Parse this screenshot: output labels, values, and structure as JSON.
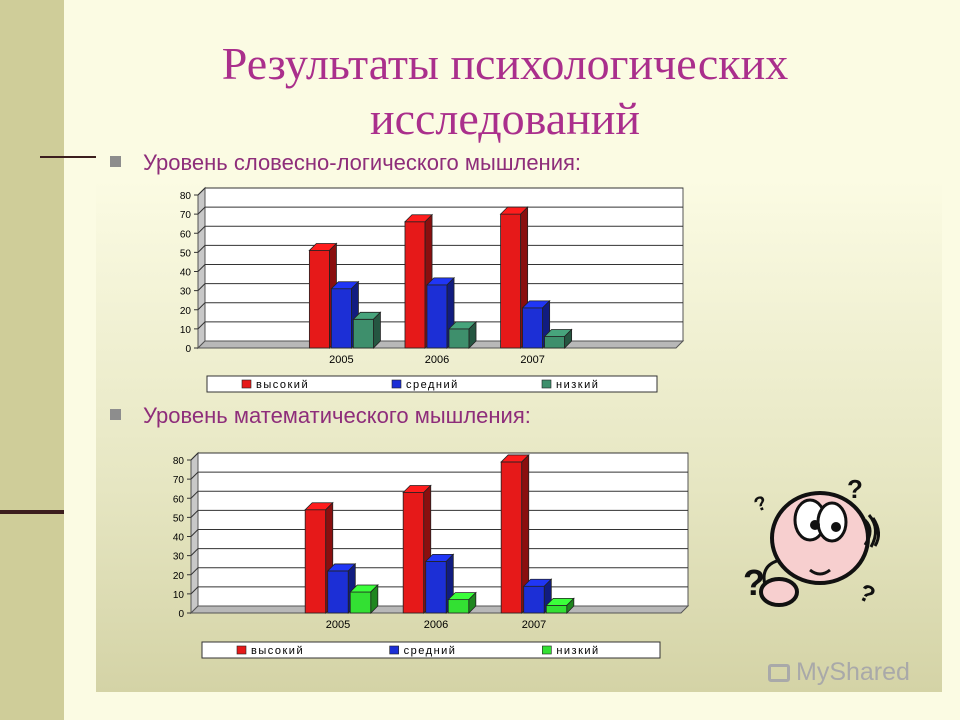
{
  "slide": {
    "title_line1": "Результаты психологических",
    "title_line2": "исследований",
    "bullet1": "Уровень словесно-логического мышления:",
    "bullet2": "Уровень математического мышления:"
  },
  "watermark": "MyShared",
  "colors": {
    "title": "#aa2f8c",
    "bullet_text": "#8e2d7a",
    "high": "#e61919",
    "medium": "#1c2fd6",
    "low_chart1": "#3e8f6c",
    "low_chart2": "#33e033"
  },
  "chart_data": [
    {
      "type": "bar",
      "categories": [
        "",
        "2005",
        "2006",
        "2007",
        ""
      ],
      "series": [
        {
          "name": "высокий",
          "values": [
            0,
            51,
            66,
            70,
            0
          ]
        },
        {
          "name": "средний",
          "values": [
            0,
            31,
            33,
            21,
            0
          ]
        },
        {
          "name": "низкий",
          "values": [
            0,
            15,
            10,
            6,
            0
          ]
        }
      ],
      "ylim": [
        0,
        80
      ],
      "yticks": [
        "0",
        "10",
        "20",
        "30",
        "40",
        "50",
        "60",
        "70",
        "80"
      ],
      "grid": true,
      "legend": "bottom"
    },
    {
      "type": "bar",
      "categories": [
        "",
        "2005",
        "2006",
        "2007",
        ""
      ],
      "series": [
        {
          "name": "высокий",
          "values": [
            0,
            54,
            63,
            79,
            0
          ]
        },
        {
          "name": "средний",
          "values": [
            0,
            22,
            27,
            14,
            0
          ]
        },
        {
          "name": "низкий",
          "values": [
            0,
            11,
            7,
            4,
            0
          ]
        }
      ],
      "ylim": [
        0,
        80
      ],
      "yticks": [
        "0",
        "10",
        "20",
        "30",
        "40",
        "50",
        "60",
        "70",
        "80"
      ],
      "grid": true,
      "legend": "bottom"
    }
  ]
}
